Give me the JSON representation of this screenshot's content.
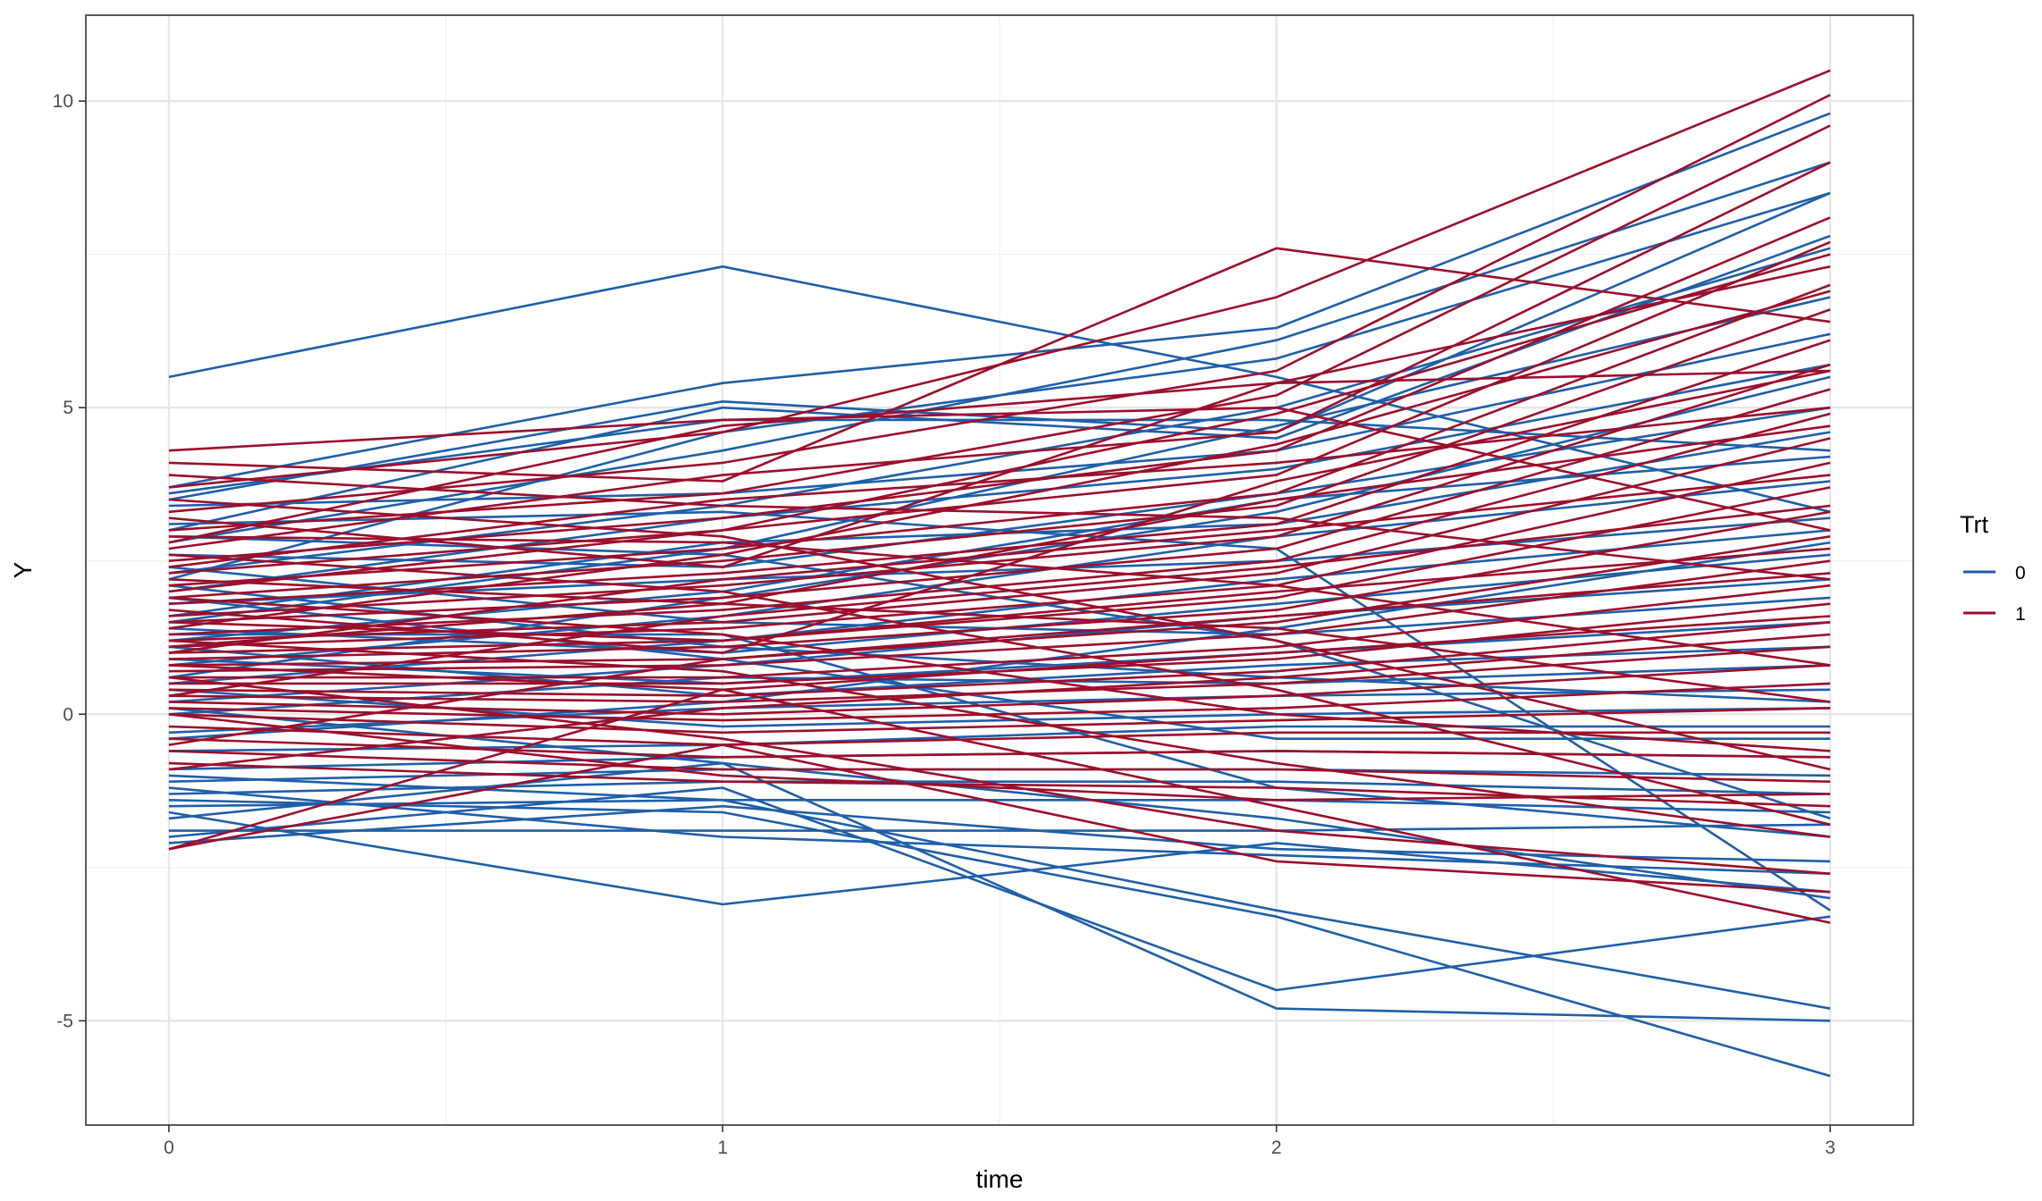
{
  "chart_data": {
    "type": "line",
    "xlabel": "time",
    "ylabel": "Y",
    "x": [
      0,
      1,
      2,
      3
    ],
    "xlim": [
      -0.15,
      3.15
    ],
    "ylim": [
      -6.7,
      11.4
    ],
    "x_ticks": [
      0,
      1,
      2,
      3
    ],
    "x_tick_labels": [
      "0",
      "1",
      "2",
      "3"
    ],
    "y_ticks": [
      -5,
      0,
      5,
      10
    ],
    "y_tick_labels": [
      "-5",
      "0",
      "5",
      "10"
    ],
    "grid": true,
    "legend": {
      "title": "Trt",
      "position": "right",
      "entries": [
        {
          "label": "0",
          "color": "#1f5fa8"
        },
        {
          "label": "1",
          "color": "#9b0f2c"
        }
      ]
    },
    "series": [
      {
        "group": "0",
        "values": [
          5.5,
          7.3,
          5.5,
          3.3
        ]
      },
      {
        "group": "0",
        "values": [
          3.7,
          5.4,
          6.3,
          9.8
        ]
      },
      {
        "group": "0",
        "values": [
          3.5,
          5.1,
          4.6,
          8.5
        ]
      },
      {
        "group": "0",
        "values": [
          2.8,
          4.3,
          6.1,
          9.0
        ]
      },
      {
        "group": "0",
        "values": [
          3.0,
          5.0,
          4.5,
          7.8
        ]
      },
      {
        "group": "0",
        "values": [
          2.2,
          4.6,
          5.8,
          8.5
        ]
      },
      {
        "group": "0",
        "values": [
          3.4,
          3.6,
          4.3,
          6.2
        ]
      },
      {
        "group": "0",
        "values": [
          2.0,
          3.2,
          4.0,
          5.7
        ]
      },
      {
        "group": "0",
        "values": [
          2.6,
          2.4,
          3.6,
          5.0
        ]
      },
      {
        "group": "0",
        "values": [
          1.6,
          2.8,
          3.1,
          4.6
        ]
      },
      {
        "group": "0",
        "values": [
          1.2,
          2.0,
          3.5,
          4.2
        ]
      },
      {
        "group": "0",
        "values": [
          0.8,
          1.6,
          2.9,
          3.8
        ]
      },
      {
        "group": "0",
        "values": [
          1.8,
          2.2,
          2.5,
          3.2
        ]
      },
      {
        "group": "0",
        "values": [
          0.5,
          1.2,
          2.2,
          3.0
        ]
      },
      {
        "group": "0",
        "values": [
          1.4,
          1.0,
          1.8,
          2.6
        ]
      },
      {
        "group": "0",
        "values": [
          0.2,
          0.8,
          1.6,
          2.2
        ]
      },
      {
        "group": "0",
        "values": [
          2.4,
          1.5,
          1.3,
          1.9
        ]
      },
      {
        "group": "0",
        "values": [
          0.9,
          0.5,
          1.0,
          1.5
        ]
      },
      {
        "group": "0",
        "values": [
          1.1,
          0.3,
          0.8,
          1.1
        ]
      },
      {
        "group": "0",
        "values": [
          0.0,
          0.6,
          0.5,
          0.8
        ]
      },
      {
        "group": "0",
        "values": [
          -0.3,
          0.1,
          0.3,
          0.4
        ]
      },
      {
        "group": "0",
        "values": [
          0.4,
          -0.2,
          0.0,
          0.1
        ]
      },
      {
        "group": "0",
        "values": [
          -0.6,
          -0.5,
          -0.2,
          -0.2
        ]
      },
      {
        "group": "0",
        "values": [
          1.9,
          0.9,
          -0.4,
          -0.4
        ]
      },
      {
        "group": "0",
        "values": [
          -0.9,
          -0.7,
          -0.6,
          -0.7
        ]
      },
      {
        "group": "0",
        "values": [
          -1.1,
          -0.9,
          -0.9,
          -1.0
        ]
      },
      {
        "group": "0",
        "values": [
          -1.3,
          -1.1,
          -1.1,
          -1.3
        ]
      },
      {
        "group": "0",
        "values": [
          -1.5,
          -1.4,
          -1.4,
          -1.6
        ]
      },
      {
        "group": "0",
        "values": [
          -1.9,
          -1.9,
          -1.9,
          -1.8
        ]
      },
      {
        "group": "0",
        "values": [
          -2.1,
          -1.5,
          -2.2,
          -2.4
        ]
      },
      {
        "group": "0",
        "values": [
          -1.2,
          -2.0,
          -2.3,
          -2.6
        ]
      },
      {
        "group": "0",
        "values": [
          -1.6,
          -3.1,
          -2.1,
          -2.9
        ]
      },
      {
        "group": "0",
        "values": [
          -1.0,
          -1.4,
          -3.2,
          -4.8
        ]
      },
      {
        "group": "0",
        "values": [
          -1.4,
          -1.6,
          -3.3,
          -5.9
        ]
      },
      {
        "group": "0",
        "values": [
          -2.0,
          -1.2,
          -4.5,
          -3.3
        ]
      },
      {
        "group": "0",
        "values": [
          -1.7,
          -0.8,
          -4.8,
          -5.0
        ]
      },
      {
        "group": "0",
        "values": [
          3.1,
          3.3,
          2.7,
          -3.2
        ]
      },
      {
        "group": "0",
        "values": [
          2.9,
          2.6,
          1.2,
          -1.7
        ]
      },
      {
        "group": "0",
        "values": [
          1.5,
          2.7,
          4.7,
          6.8
        ]
      },
      {
        "group": "0",
        "values": [
          0.6,
          1.9,
          3.3,
          5.5
        ]
      },
      {
        "group": "0",
        "values": [
          -0.4,
          0.2,
          1.4,
          2.8
        ]
      },
      {
        "group": "0",
        "values": [
          2.3,
          3.4,
          5.0,
          7.6
        ]
      },
      {
        "group": "0",
        "values": [
          1.3,
          1.3,
          -1.2,
          -2.0
        ]
      },
      {
        "group": "0",
        "values": [
          0.1,
          -0.8,
          -1.7,
          -3.0
        ]
      },
      {
        "group": "0",
        "values": [
          3.6,
          4.8,
          4.8,
          4.3
        ]
      },
      {
        "group": "0",
        "values": [
          2.1,
          1.1,
          0.6,
          0.2
        ]
      },
      {
        "group": "1",
        "values": [
          4.3,
          4.8,
          5.0,
          3.0
        ]
      },
      {
        "group": "1",
        "values": [
          4.1,
          3.8,
          7.6,
          6.4
        ]
      },
      {
        "group": "1",
        "values": [
          3.7,
          4.6,
          6.8,
          10.5
        ]
      },
      {
        "group": "1",
        "values": [
          3.3,
          4.1,
          5.6,
          10.1
        ]
      },
      {
        "group": "1",
        "values": [
          3.0,
          3.6,
          5.2,
          9.6
        ]
      },
      {
        "group": "1",
        "values": [
          2.7,
          3.9,
          4.6,
          9.0
        ]
      },
      {
        "group": "1",
        "values": [
          2.5,
          3.2,
          4.3,
          8.1
        ]
      },
      {
        "group": "1",
        "values": [
          2.3,
          3.0,
          3.9,
          7.7
        ]
      },
      {
        "group": "1",
        "values": [
          2.1,
          2.7,
          3.6,
          7.0
        ]
      },
      {
        "group": "1",
        "values": [
          1.9,
          2.5,
          3.4,
          6.6
        ]
      },
      {
        "group": "1",
        "values": [
          1.8,
          2.3,
          3.1,
          6.1
        ]
      },
      {
        "group": "1",
        "values": [
          1.6,
          2.1,
          2.9,
          5.7
        ]
      },
      {
        "group": "1",
        "values": [
          1.5,
          1.9,
          2.7,
          5.3
        ]
      },
      {
        "group": "1",
        "values": [
          1.3,
          1.7,
          2.5,
          4.9
        ]
      },
      {
        "group": "1",
        "values": [
          1.2,
          1.5,
          2.3,
          4.5
        ]
      },
      {
        "group": "1",
        "values": [
          1.1,
          1.4,
          2.1,
          4.1
        ]
      },
      {
        "group": "1",
        "values": [
          1.0,
          1.2,
          1.9,
          3.7
        ]
      },
      {
        "group": "1",
        "values": [
          0.9,
          1.1,
          1.7,
          3.3
        ]
      },
      {
        "group": "1",
        "values": [
          0.8,
          0.9,
          1.5,
          2.9
        ]
      },
      {
        "group": "1",
        "values": [
          0.7,
          0.8,
          1.3,
          2.5
        ]
      },
      {
        "group": "1",
        "values": [
          0.6,
          0.6,
          1.1,
          2.1
        ]
      },
      {
        "group": "1",
        "values": [
          0.5,
          0.5,
          0.9,
          1.8
        ]
      },
      {
        "group": "1",
        "values": [
          0.4,
          0.3,
          0.7,
          1.5
        ]
      },
      {
        "group": "1",
        "values": [
          0.3,
          0.2,
          0.5,
          1.1
        ]
      },
      {
        "group": "1",
        "values": [
          0.2,
          0.0,
          0.3,
          0.8
        ]
      },
      {
        "group": "1",
        "values": [
          0.1,
          -0.1,
          0.1,
          0.5
        ]
      },
      {
        "group": "1",
        "values": [
          0.0,
          -0.3,
          -0.1,
          0.1
        ]
      },
      {
        "group": "1",
        "values": [
          -0.2,
          -0.5,
          -0.3,
          -0.3
        ]
      },
      {
        "group": "1",
        "values": [
          -0.4,
          -0.7,
          -0.6,
          -0.7
        ]
      },
      {
        "group": "1",
        "values": [
          -0.6,
          -0.9,
          -0.9,
          -1.1
        ]
      },
      {
        "group": "1",
        "values": [
          -0.8,
          -1.1,
          -1.2,
          -1.5
        ]
      },
      {
        "group": "1",
        "values": [
          -2.2,
          -0.5,
          -2.4,
          -2.9
        ]
      },
      {
        "group": "1",
        "values": [
          -2.2,
          0.4,
          -1.5,
          -3.4
        ]
      },
      {
        "group": "1",
        "values": [
          3.2,
          2.4,
          5.4,
          7.3
        ]
      },
      {
        "group": "1",
        "values": [
          2.0,
          3.0,
          4.9,
          7.5
        ]
      },
      {
        "group": "1",
        "values": [
          1.4,
          2.6,
          4.4,
          6.9
        ]
      },
      {
        "group": "1",
        "values": [
          1.7,
          1.0,
          3.8,
          5.6
        ]
      },
      {
        "group": "1",
        "values": [
          2.9,
          2.8,
          2.1,
          0.8
        ]
      },
      {
        "group": "1",
        "values": [
          3.5,
          2.9,
          1.2,
          -0.9
        ]
      },
      {
        "group": "1",
        "values": [
          2.6,
          2.0,
          0.4,
          -1.8
        ]
      },
      {
        "group": "1",
        "values": [
          2.4,
          3.5,
          4.1,
          5.0
        ]
      },
      {
        "group": "1",
        "values": [
          1.0,
          2.2,
          3.0,
          3.9
        ]
      },
      {
        "group": "1",
        "values": [
          0.3,
          1.6,
          2.4,
          3.4
        ]
      },
      {
        "group": "1",
        "values": [
          -0.5,
          0.9,
          1.6,
          2.3
        ]
      },
      {
        "group": "1",
        "values": [
          -0.9,
          0.1,
          0.6,
          1.3
        ]
      },
      {
        "group": "1",
        "values": [
          1.9,
          1.3,
          0.0,
          -0.6
        ]
      },
      {
        "group": "1",
        "values": [
          1.2,
          0.7,
          -0.8,
          -2.0
        ]
      },
      {
        "group": "1",
        "values": [
          0.6,
          -0.4,
          -1.9,
          -2.6
        ]
      },
      {
        "group": "1",
        "values": [
          2.2,
          1.8,
          3.5,
          4.7
        ]
      },
      {
        "group": "1",
        "values": [
          1.5,
          1.2,
          2.0,
          2.7
        ]
      },
      {
        "group": "1",
        "values": [
          0.8,
          0.4,
          1.0,
          1.6
        ]
      },
      {
        "group": "1",
        "values": [
          3.9,
          3.4,
          3.2,
          2.2
        ]
      },
      {
        "group": "1",
        "values": [
          2.8,
          4.7,
          5.4,
          5.6
        ]
      },
      {
        "group": "1",
        "values": [
          1.1,
          1.8,
          1.4,
          0.2
        ]
      },
      {
        "group": "1",
        "values": [
          0.0,
          -1.0,
          -1.4,
          -1.3
        ]
      }
    ]
  }
}
